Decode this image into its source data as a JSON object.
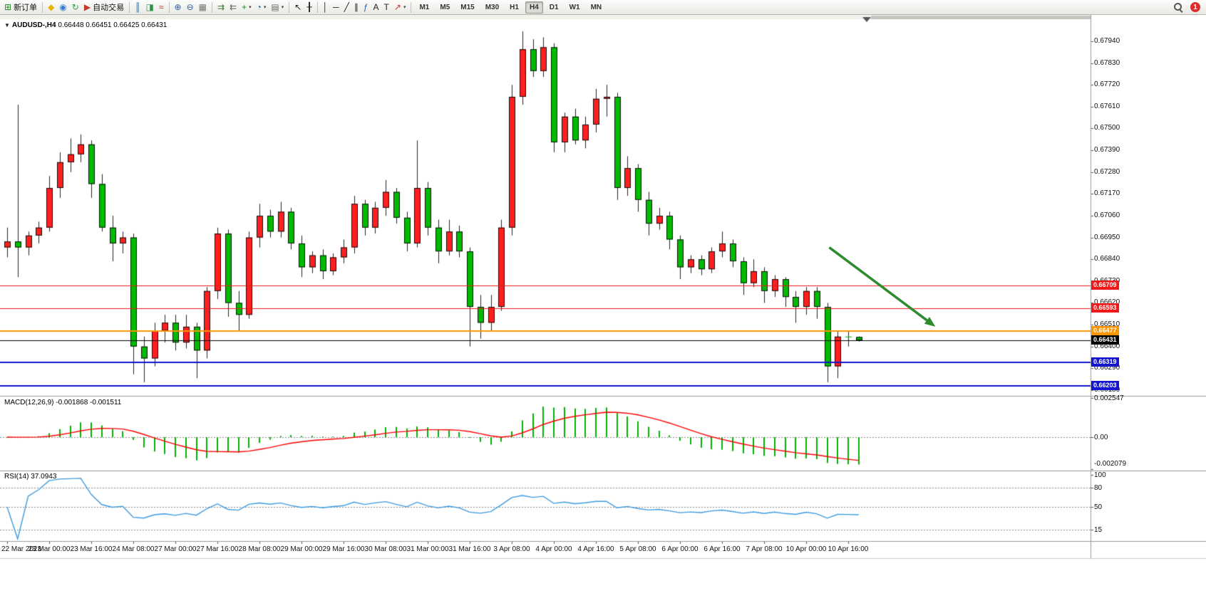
{
  "toolbar": {
    "items": [
      {
        "type": "button",
        "name": "new-order-button",
        "icon": "new-order-icon",
        "label": "新订单"
      },
      {
        "type": "sep"
      },
      {
        "type": "button",
        "name": "charts-button",
        "icon": "gem-icon"
      },
      {
        "type": "button",
        "name": "market-watch-button",
        "icon": "user-icon"
      },
      {
        "type": "button",
        "name": "refresh-button",
        "icon": "refresh-icon"
      },
      {
        "type": "button",
        "name": "autotrading-button",
        "icon": "autotrade-icon",
        "label": "自动交易"
      },
      {
        "type": "sep"
      },
      {
        "type": "button",
        "name": "bar-chart-button",
        "icon": "bars-chart-icon"
      },
      {
        "type": "button",
        "name": "candlestick-chart-button",
        "icon": "candles-chart-icon"
      },
      {
        "type": "button",
        "name": "line-chart-button",
        "icon": "line-chart-icon"
      },
      {
        "type": "sep"
      },
      {
        "type": "button",
        "name": "zoom-in-button",
        "icon": "zoom-in-icon"
      },
      {
        "type": "button",
        "name": "zoom-out-button",
        "icon": "zoom-out-icon"
      },
      {
        "type": "button",
        "name": "tile-windows-button",
        "icon": "tile-windows-icon"
      },
      {
        "type": "sep"
      },
      {
        "type": "button",
        "name": "auto-scroll-button",
        "icon": "auto-scroll-icon"
      },
      {
        "type": "button",
        "name": "chart-shift-button",
        "icon": "chart-shift-icon"
      },
      {
        "type": "button",
        "name": "indicators-button",
        "icon": "indicators-icon",
        "caret": true
      },
      {
        "type": "button",
        "name": "periods-button",
        "icon": "clock-icon",
        "caret": true
      },
      {
        "type": "button",
        "name": "templates-button",
        "icon": "template-icon",
        "caret": true
      },
      {
        "type": "sep"
      },
      {
        "type": "button",
        "name": "cursor-button",
        "icon": "cursor-icon"
      },
      {
        "type": "button",
        "name": "crosshair-button",
        "icon": "crosshair-icon"
      },
      {
        "type": "sep"
      },
      {
        "type": "button",
        "name": "vertical-line-button",
        "icon": "vline-icon"
      },
      {
        "type": "button",
        "name": "horizontal-line-button",
        "icon": "hline-icon"
      },
      {
        "type": "button",
        "name": "trendline-button",
        "icon": "trendline-icon"
      },
      {
        "type": "button",
        "name": "equidistant-channel-button",
        "icon": "channel-icon"
      },
      {
        "type": "button",
        "name": "fibonacci-button",
        "icon": "fibonacci-icon"
      },
      {
        "type": "button",
        "name": "text-button",
        "icon": "text-icon"
      },
      {
        "type": "button",
        "name": "text-label-button",
        "icon": "label-icon"
      },
      {
        "type": "button",
        "name": "arrows-button",
        "icon": "arrows-icon",
        "caret": true
      },
      {
        "type": "sep"
      }
    ],
    "timeframes": [
      "M1",
      "M5",
      "M15",
      "M30",
      "H1",
      "H4",
      "D1",
      "W1",
      "MN"
    ],
    "active_timeframe": "H4",
    "notification_count": "1"
  },
  "chart": {
    "symbol": "AUDUSD-,H4",
    "ohlc_line": "0.66448 0.66451 0.66425 0.66431",
    "hlines": [
      {
        "price": 0.66709,
        "label": "0.66709",
        "color": "#f01818",
        "width": 1
      },
      {
        "price": 0.66593,
        "label": "0.66593",
        "color": "#f01818",
        "width": 1
      },
      {
        "price": 0.66477,
        "label": "0.66477",
        "color": "#ff9500",
        "width": 2
      },
      {
        "price": 0.66431,
        "label": "0.66431",
        "color": "#000000",
        "width": 1
      },
      {
        "price": 0.66319,
        "label": "0.66319",
        "color": "#1414cc",
        "width": 2
      },
      {
        "price": 0.66203,
        "label": "0.66203",
        "color": "#1414cc",
        "width": 2
      }
    ],
    "indicators": {
      "macd": {
        "header": "MACD(12,26,9)",
        "values_text": "-0.001868 -0.001511",
        "scale_labels": [
          "0.002547",
          "0.00",
          "-0.002079"
        ],
        "scale_values": [
          0.002547,
          0,
          -0.002079
        ],
        "histogram_color": "#00b200",
        "signal_color": "#ff0000"
      },
      "rsi": {
        "header": "RSI(14)",
        "value_text": "37.0943",
        "scale_labels": [
          "100",
          "80",
          "50",
          "15"
        ],
        "scale_values": [
          100,
          80,
          50,
          15
        ],
        "levels": [
          80,
          50,
          15
        ],
        "line_color": "#3d9ae0"
      }
    },
    "annotation_arrow": {
      "from_bar": 78.2,
      "from_price": 0.669,
      "to_bar": 88.3,
      "to_price": 0.665,
      "color": "#2e8b2e"
    }
  },
  "chart_data": {
    "type": "candlestick",
    "up_color": "#ff1f1f",
    "down_color": "#00bb00",
    "y_axis_labels": [
      "0.67940",
      "0.67830",
      "0.67720",
      "0.67610",
      "0.67500",
      "0.67390",
      "0.67280",
      "0.67170",
      "0.67060",
      "0.66950",
      "0.66840",
      "0.66730",
      "0.66620",
      "0.66510",
      "0.66400",
      "0.66290",
      "0.66180"
    ],
    "x_labels": [
      "22 Mar 2023",
      "23 Mar 00:00",
      "23 Mar 16:00",
      "24 Mar 08:00",
      "27 Mar 00:00",
      "27 Mar 16:00",
      "28 Mar 08:00",
      "29 Mar 00:00",
      "29 Mar 16:00",
      "30 Mar 08:00",
      "31 Mar 00:00",
      "31 Mar 16:00",
      "3 Apr 08:00",
      "4 Apr 00:00",
      "4 Apr 16:00",
      "5 Apr 08:00",
      "6 Apr 00:00",
      "6 Apr 16:00",
      "7 Apr 08:00",
      "10 Apr 00:00",
      "10 Apr 16:00"
    ],
    "x_label_step": 4,
    "candles": [
      [
        0.669,
        0.67,
        0.6685,
        0.6693
      ],
      [
        0.6693,
        0.6762,
        0.6675,
        0.669
      ],
      [
        0.669,
        0.6698,
        0.6686,
        0.6696
      ],
      [
        0.6696,
        0.6703,
        0.6692,
        0.67
      ],
      [
        0.67,
        0.6726,
        0.6698,
        0.672
      ],
      [
        0.672,
        0.6738,
        0.6715,
        0.6733
      ],
      [
        0.6733,
        0.6745,
        0.6728,
        0.6737
      ],
      [
        0.6737,
        0.6747,
        0.6733,
        0.6742
      ],
      [
        0.6742,
        0.6744,
        0.6715,
        0.6722
      ],
      [
        0.6722,
        0.6727,
        0.6698,
        0.67
      ],
      [
        0.67,
        0.6706,
        0.6683,
        0.6692
      ],
      [
        0.6692,
        0.6698,
        0.6687,
        0.6695
      ],
      [
        0.6695,
        0.6697,
        0.6626,
        0.664
      ],
      [
        0.664,
        0.6645,
        0.6622,
        0.6634
      ],
      [
        0.6634,
        0.6652,
        0.663,
        0.6648
      ],
      [
        0.6648,
        0.6656,
        0.6642,
        0.6652
      ],
      [
        0.6652,
        0.6656,
        0.6638,
        0.6642
      ],
      [
        0.6642,
        0.6656,
        0.6639,
        0.665
      ],
      [
        0.665,
        0.6652,
        0.6624,
        0.6638
      ],
      [
        0.6638,
        0.667,
        0.6634,
        0.6668
      ],
      [
        0.6668,
        0.67,
        0.6664,
        0.6697
      ],
      [
        0.6697,
        0.6699,
        0.6655,
        0.6662
      ],
      [
        0.6662,
        0.6668,
        0.6648,
        0.6656
      ],
      [
        0.6656,
        0.6698,
        0.6654,
        0.6695
      ],
      [
        0.6695,
        0.6712,
        0.669,
        0.6706
      ],
      [
        0.6706,
        0.6709,
        0.6695,
        0.6698
      ],
      [
        0.6698,
        0.6713,
        0.6695,
        0.6708
      ],
      [
        0.6708,
        0.671,
        0.6689,
        0.6692
      ],
      [
        0.6692,
        0.6696,
        0.6675,
        0.668
      ],
      [
        0.668,
        0.6688,
        0.6677,
        0.6686
      ],
      [
        0.6686,
        0.6689,
        0.6674,
        0.6678
      ],
      [
        0.6678,
        0.6687,
        0.6676,
        0.6685
      ],
      [
        0.6685,
        0.6694,
        0.6682,
        0.669
      ],
      [
        0.669,
        0.6716,
        0.6687,
        0.6712
      ],
      [
        0.6712,
        0.6714,
        0.6696,
        0.67
      ],
      [
        0.67,
        0.6713,
        0.6697,
        0.671
      ],
      [
        0.671,
        0.6724,
        0.6706,
        0.6718
      ],
      [
        0.6718,
        0.672,
        0.6702,
        0.6705
      ],
      [
        0.6705,
        0.6708,
        0.6688,
        0.6692
      ],
      [
        0.6692,
        0.6744,
        0.669,
        0.672
      ],
      [
        0.672,
        0.6723,
        0.6696,
        0.67
      ],
      [
        0.67,
        0.6704,
        0.6682,
        0.6688
      ],
      [
        0.6688,
        0.6704,
        0.6686,
        0.6698
      ],
      [
        0.6698,
        0.6701,
        0.6685,
        0.6688
      ],
      [
        0.6688,
        0.669,
        0.664,
        0.666
      ],
      [
        0.666,
        0.6666,
        0.6644,
        0.6652
      ],
      [
        0.6652,
        0.6666,
        0.6648,
        0.666
      ],
      [
        0.666,
        0.6704,
        0.6658,
        0.67
      ],
      [
        0.67,
        0.6772,
        0.6696,
        0.6766
      ],
      [
        0.6766,
        0.6799,
        0.6762,
        0.679
      ],
      [
        0.679,
        0.6795,
        0.6776,
        0.6779
      ],
      [
        0.6779,
        0.6796,
        0.6776,
        0.6791
      ],
      [
        0.6791,
        0.6793,
        0.6738,
        0.6743
      ],
      [
        0.6743,
        0.6758,
        0.6738,
        0.6756
      ],
      [
        0.6756,
        0.676,
        0.6742,
        0.6744
      ],
      [
        0.6744,
        0.6756,
        0.674,
        0.6752
      ],
      [
        0.6752,
        0.677,
        0.6748,
        0.6765
      ],
      [
        0.6765,
        0.6772,
        0.6756,
        0.6766
      ],
      [
        0.6766,
        0.6768,
        0.6714,
        0.672
      ],
      [
        0.672,
        0.6736,
        0.6716,
        0.673
      ],
      [
        0.673,
        0.6732,
        0.6708,
        0.6714
      ],
      [
        0.6714,
        0.6718,
        0.6696,
        0.6702
      ],
      [
        0.6702,
        0.671,
        0.6699,
        0.6706
      ],
      [
        0.6706,
        0.6708,
        0.6689,
        0.6694
      ],
      [
        0.6694,
        0.6696,
        0.6674,
        0.668
      ],
      [
        0.668,
        0.6686,
        0.6677,
        0.6684
      ],
      [
        0.6684,
        0.6686,
        0.6676,
        0.6679
      ],
      [
        0.6679,
        0.669,
        0.6677,
        0.6688
      ],
      [
        0.6688,
        0.6698,
        0.6685,
        0.6692
      ],
      [
        0.6692,
        0.6694,
        0.668,
        0.6683
      ],
      [
        0.6683,
        0.6685,
        0.6666,
        0.6672
      ],
      [
        0.6672,
        0.6684,
        0.667,
        0.6678
      ],
      [
        0.6678,
        0.668,
        0.6662,
        0.6668
      ],
      [
        0.6668,
        0.6676,
        0.6665,
        0.6674
      ],
      [
        0.6674,
        0.6675,
        0.666,
        0.6665
      ],
      [
        0.6665,
        0.6668,
        0.6652,
        0.666
      ],
      [
        0.666,
        0.667,
        0.6656,
        0.6668
      ],
      [
        0.6668,
        0.667,
        0.6654,
        0.666
      ],
      [
        0.666,
        0.6662,
        0.6622,
        0.663
      ],
      [
        0.663,
        0.6648,
        0.6624,
        0.6645
      ],
      [
        0.6645,
        0.6648,
        0.664,
        0.66448
      ],
      [
        0.66448,
        0.66451,
        0.66425,
        0.66431
      ]
    ]
  }
}
